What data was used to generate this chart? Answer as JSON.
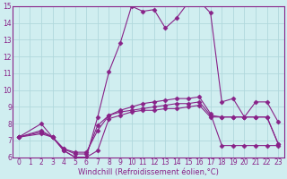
{
  "xlabel": "Windchill (Refroidissement éolien,°C)",
  "bg_color": "#d0eef0",
  "grid_color": "#b0d8dc",
  "line_color": "#882288",
  "xlim": [
    -0.5,
    23.5
  ],
  "ylim": [
    6,
    15
  ],
  "yticks": [
    6,
    7,
    8,
    9,
    10,
    11,
    12,
    13,
    14,
    15
  ],
  "xticks": [
    0,
    1,
    2,
    3,
    4,
    5,
    6,
    7,
    8,
    9,
    10,
    11,
    12,
    13,
    14,
    15,
    16,
    17,
    18,
    19,
    20,
    21,
    22,
    23
  ],
  "line1_x": [
    0,
    2,
    3,
    4,
    5,
    6,
    7,
    8,
    9,
    10,
    11,
    12,
    13,
    14,
    15,
    16,
    17,
    18,
    19,
    20,
    21,
    22,
    23
  ],
  "line1_y": [
    7.2,
    8.0,
    7.2,
    6.4,
    6.0,
    6.0,
    8.4,
    11.1,
    12.8,
    15.0,
    14.7,
    14.8,
    13.7,
    14.3,
    15.2,
    15.3,
    14.6,
    9.3,
    9.5,
    8.4,
    9.3,
    9.3,
    8.1
  ],
  "line2_x": [
    0,
    2,
    3,
    4,
    5,
    6,
    7,
    8,
    9,
    10,
    11,
    12,
    13,
    14,
    15,
    16,
    17,
    18,
    19,
    20,
    21,
    22,
    23
  ],
  "line2_y": [
    7.2,
    7.5,
    7.2,
    6.5,
    6.3,
    6.3,
    7.6,
    8.5,
    8.8,
    9.0,
    9.2,
    9.3,
    9.4,
    9.5,
    9.5,
    9.6,
    8.6,
    6.7,
    6.7,
    6.7,
    6.7,
    6.7,
    6.7
  ],
  "line3_x": [
    0,
    2,
    3,
    4,
    5,
    6,
    7,
    8,
    9,
    10,
    11,
    12,
    13,
    14,
    15,
    16,
    17,
    18,
    19,
    20,
    21,
    22,
    23
  ],
  "line3_y": [
    7.2,
    7.6,
    7.2,
    6.5,
    6.2,
    6.2,
    7.9,
    8.5,
    8.7,
    8.8,
    8.9,
    9.0,
    9.1,
    9.2,
    9.2,
    9.3,
    8.5,
    8.4,
    8.4,
    8.4,
    8.4,
    8.4,
    6.8
  ],
  "line4_x": [
    0,
    2,
    3,
    4,
    5,
    6,
    7,
    8,
    9,
    10,
    11,
    12,
    13,
    14,
    15,
    16,
    17,
    18,
    19,
    20,
    21,
    22,
    23
  ],
  "line4_y": [
    7.2,
    7.4,
    7.2,
    6.4,
    6.0,
    6.0,
    6.4,
    8.3,
    8.5,
    8.7,
    8.8,
    8.8,
    8.9,
    8.9,
    9.0,
    9.1,
    8.4,
    8.4,
    8.4,
    8.4,
    8.4,
    8.4,
    6.8
  ],
  "marker": "D",
  "marker_size": 2.5,
  "line_width": 0.8,
  "font_size_ticks": 5.5,
  "font_size_label": 6.0
}
